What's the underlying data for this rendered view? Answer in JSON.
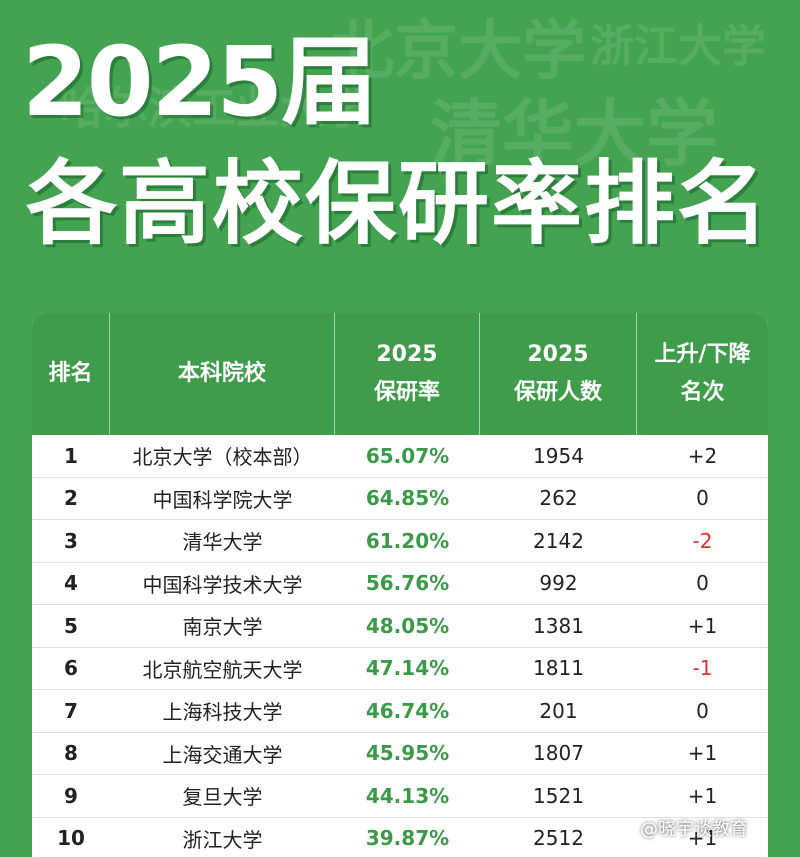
{
  "background_words": [
    "北京大学",
    "浙江大学",
    "哈尔滨工业大学",
    "清华大学"
  ],
  "header": {
    "title": "2025届",
    "subtitle": "各高校保研率排名"
  },
  "table": {
    "columns": [
      [
        "排名"
      ],
      [
        "本科院校"
      ],
      [
        "2025",
        "保研率"
      ],
      [
        "2025",
        "保研人数"
      ],
      [
        "上升/下降",
        "名次"
      ]
    ],
    "rows": [
      [
        "1",
        "北京大学（校本部）",
        "65.07%",
        "1954",
        "+2"
      ],
      [
        "2",
        "中国科学院大学",
        "64.85%",
        "262",
        "0"
      ],
      [
        "3",
        "清华大学",
        "61.20%",
        "2142",
        "-2"
      ],
      [
        "4",
        "中国科学技术大学",
        "56.76%",
        "992",
        "0"
      ],
      [
        "5",
        "南京大学",
        "48.05%",
        "1381",
        "+1"
      ],
      [
        "6",
        "北京航空航天大学",
        "47.14%",
        "1811",
        "-1"
      ],
      [
        "7",
        "上海科技大学",
        "46.74%",
        "201",
        "0"
      ],
      [
        "8",
        "上海交通大学",
        "45.95%",
        "1807",
        "+1"
      ],
      [
        "9",
        "复旦大学",
        "44.13%",
        "1521",
        "+1"
      ],
      [
        "10",
        "浙江大学",
        "39.87%",
        "2512",
        "+1"
      ]
    ]
  },
  "watermark": "@晓宇谈教育"
}
